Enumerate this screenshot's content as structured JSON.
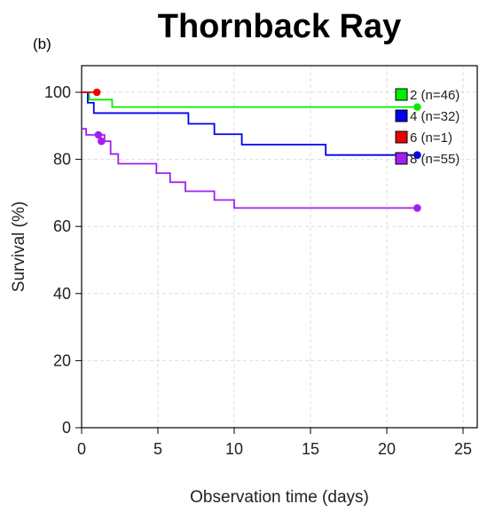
{
  "chart_data": {
    "type": "line",
    "title": "Thornback Ray",
    "panel_label": "(b)",
    "xlabel": "Observation time (days)",
    "ylabel": "Survival (%)",
    "xlim": [
      0,
      26
    ],
    "ylim": [
      0,
      100
    ],
    "x_ticks": [
      0,
      5,
      10,
      15,
      20,
      25
    ],
    "y_ticks": [
      0,
      20,
      40,
      60,
      80,
      100
    ],
    "grid": true,
    "step": true,
    "legend_position": "top-right",
    "series": [
      {
        "name": "2 (n=46)",
        "color": "#00ee00",
        "x": [
          0,
          0.5,
          2,
          22
        ],
        "y": [
          100,
          97.8,
          95.6,
          95.6
        ],
        "censored": [
          [
            22,
            95.6
          ]
        ]
      },
      {
        "name": "4 (n=32)",
        "color": "#0000ee",
        "x": [
          0,
          0.4,
          0.8,
          7,
          8.7,
          10.5,
          16,
          22
        ],
        "y": [
          100,
          96.9,
          93.8,
          90.6,
          87.5,
          84.4,
          81.3,
          81.3
        ],
        "censored": [
          [
            22,
            81.3
          ]
        ]
      },
      {
        "name": "6 (n=1)",
        "color": "#ee0000",
        "x": [
          0,
          1
        ],
        "y": [
          100,
          100
        ],
        "censored": [
          [
            1,
            100
          ]
        ]
      },
      {
        "name": "8 (n=55)",
        "color": "#a020f0",
        "x": [
          0,
          0.3,
          0.6,
          0.9,
          1.5,
          1.9,
          2.4,
          4.9,
          5.8,
          6.8,
          8.7,
          10,
          22
        ],
        "y": [
          89.1,
          87.3,
          87.3,
          87.3,
          85.4,
          81.6,
          78.7,
          75.9,
          73.2,
          70.5,
          67.9,
          65.5,
          65.5
        ],
        "censored": [
          [
            1.1,
            87.3
          ],
          [
            1.3,
            85.4
          ],
          [
            22,
            65.5
          ]
        ]
      }
    ]
  }
}
